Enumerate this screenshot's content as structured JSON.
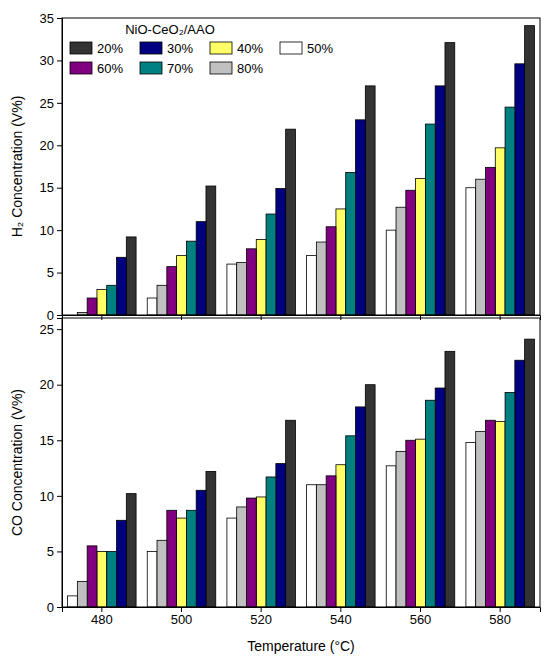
{
  "chart_data": [
    {
      "type": "bar",
      "y_label": "H₂ Concentration (V%)",
      "legend_title": "NiO-CeO₂/AAO",
      "legend": "upper left",
      "grid": false,
      "tick_labels": "y",
      "categories": [
        "480",
        "500",
        "520",
        "540",
        "560",
        "580"
      ],
      "ylim": [
        0,
        35
      ],
      "yticks": [
        0,
        5,
        10,
        15,
        20,
        25,
        30,
        35
      ],
      "series": [
        {
          "name": "20%",
          "color": "#333333",
          "values": [
            9.2,
            15.2,
            21.9,
            27,
            32.1,
            34.1
          ]
        },
        {
          "name": "30%",
          "color": "#000080",
          "values": [
            6.8,
            11,
            14.9,
            23,
            27,
            29.6
          ]
        },
        {
          "name": "40%",
          "color": "#ffff66",
          "values": [
            3,
            7,
            8.9,
            12.5,
            16.1,
            19.7
          ]
        },
        {
          "name": "50%",
          "color": "#ffffff",
          "values": [
            0,
            2,
            6,
            7,
            10,
            15
          ]
        },
        {
          "name": "60%",
          "color": "#800080",
          "values": [
            2,
            5.7,
            7.8,
            10.4,
            14.7,
            17.4
          ]
        },
        {
          "name": "70%",
          "color": "#008080",
          "values": [
            3.5,
            8.7,
            11.9,
            16.8,
            22.5,
            24.5
          ]
        },
        {
          "name": "80%",
          "color": "#c0c0c0",
          "values": [
            0.3,
            3.5,
            6.2,
            8.6,
            12.7,
            16
          ]
        }
      ]
    },
    {
      "type": "bar",
      "y_label": "CO Concentration (V%)",
      "x_label": "Temperature (°C)",
      "grid": false,
      "categories": [
        "480",
        "500",
        "520",
        "540",
        "560",
        "580"
      ],
      "ylim": [
        0,
        26
      ],
      "yticks": [
        0,
        5,
        10,
        15,
        20,
        25
      ],
      "series": [
        {
          "color": "#333333",
          "values": [
            10.2,
            12.2,
            16.8,
            20,
            23,
            24.1
          ]
        },
        {
          "color": "#000080",
          "values": [
            7.8,
            10.5,
            12.9,
            18,
            19.7,
            22.2
          ]
        },
        {
          "color": "#ffff66",
          "values": [
            5,
            8,
            9.9,
            12.8,
            15.1,
            16.7
          ]
        },
        {
          "color": "#ffffff",
          "values": [
            1,
            5,
            8,
            11,
            12.7,
            14.8
          ]
        },
        {
          "color": "#800080",
          "values": [
            5.5,
            8.7,
            9.8,
            11.8,
            15,
            16.8
          ]
        },
        {
          "color": "#008080",
          "values": [
            5,
            8.7,
            11.7,
            15.4,
            18.6,
            19.3
          ]
        },
        {
          "color": "#c0c0c0",
          "values": [
            2.3,
            6,
            9,
            11,
            14,
            15.8
          ]
        }
      ]
    }
  ]
}
